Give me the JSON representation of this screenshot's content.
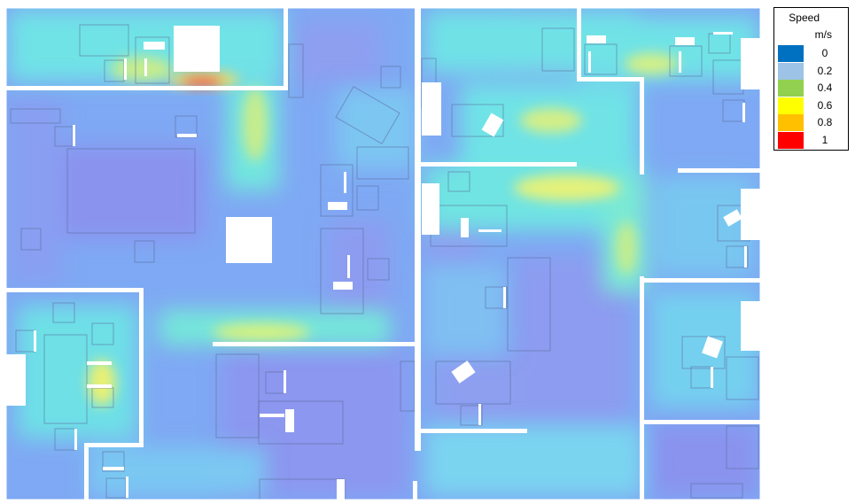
{
  "legend": {
    "title": "Speed",
    "unit": "m/s",
    "entries": [
      {
        "label": "0",
        "color": "#0070c0"
      },
      {
        "label": "0.2",
        "color": "#9dc3e6"
      },
      {
        "label": "0.4",
        "color": "#92d050"
      },
      {
        "label": "0.6",
        "color": "#ffff00"
      },
      {
        "label": "0.8",
        "color": "#ffc000"
      },
      {
        "label": "1",
        "color": "#ff0000"
      }
    ]
  },
  "colors": {
    "background_flow": "#7fa9f4",
    "low_flow": "#8c9cf0",
    "mid_flow": "#6fe3e6",
    "high_flow": "#d8f27a",
    "peak_flow": "#ff3030",
    "walls": "#ffffff",
    "furniture_outline": "#5a6a9a"
  }
}
